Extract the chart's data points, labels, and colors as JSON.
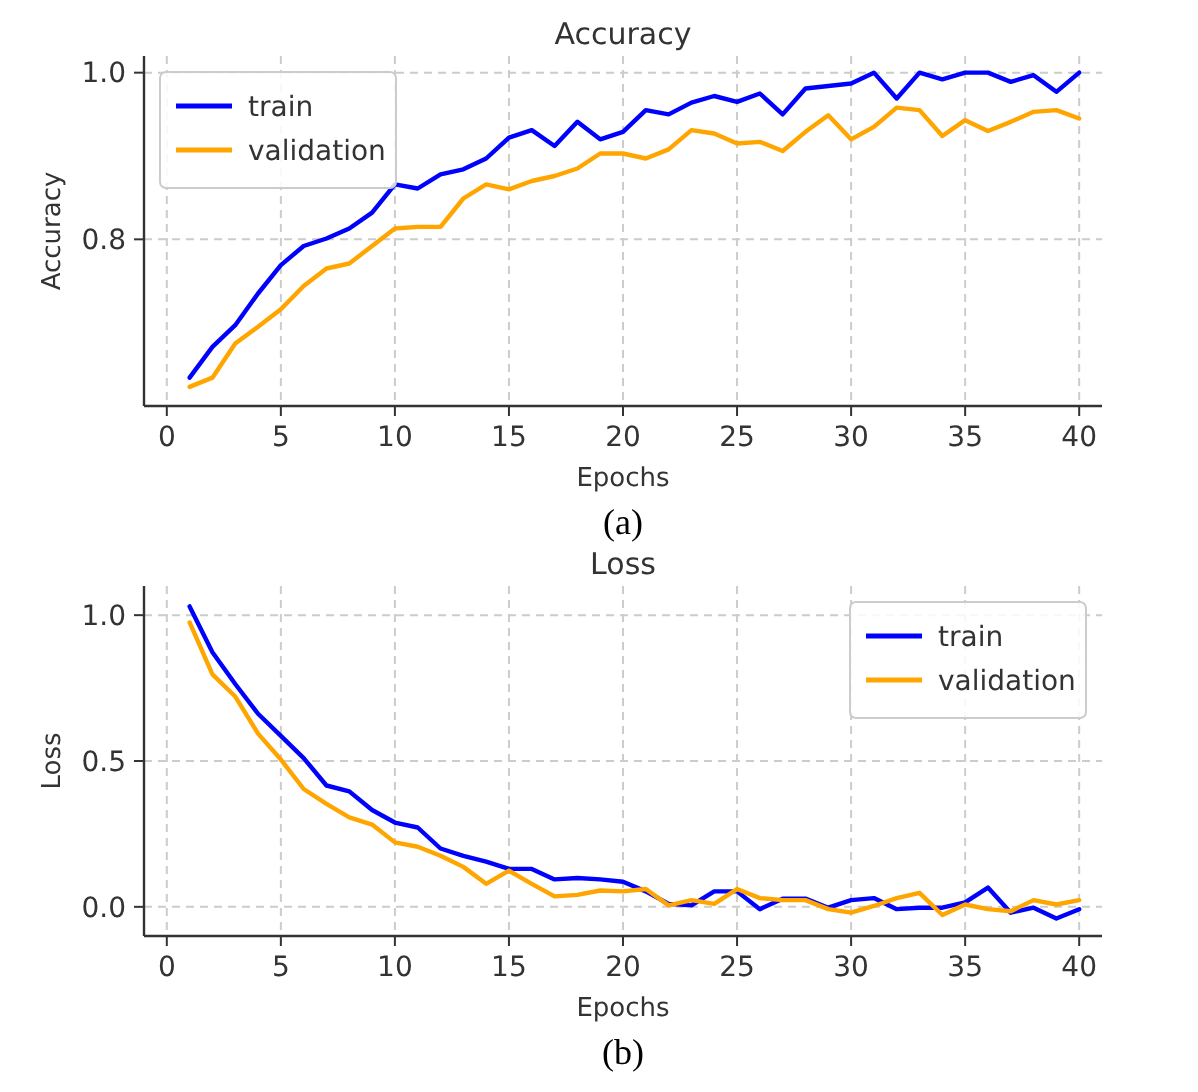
{
  "chart_data": [
    {
      "type": "line",
      "title": "Accuracy",
      "xlabel": "Epochs",
      "ylabel": "Accuracy",
      "annotations": [
        "(a)"
      ],
      "x": [
        1,
        2,
        3,
        4,
        5,
        6,
        7,
        8,
        9,
        10,
        11,
        12,
        13,
        14,
        15,
        16,
        17,
        18,
        19,
        20,
        21,
        22,
        23,
        24,
        25,
        26,
        27,
        28,
        29,
        30,
        31,
        32,
        33,
        34,
        35,
        36,
        37,
        38,
        39,
        40
      ],
      "xlim": [
        -1,
        41
      ],
      "xticks": [
        0,
        5,
        10,
        15,
        20,
        25,
        30,
        35,
        40
      ],
      "ylim": [
        0.6,
        1.02
      ],
      "yticks": [
        {
          "value": 0.8,
          "label": "0.8"
        },
        {
          "value": 1.0,
          "label": "1.0"
        }
      ],
      "grid": true,
      "legend": "top left",
      "line_style": "solid",
      "marker": "none",
      "series": [
        {
          "name": "train",
          "color": "#0000ff",
          "values": [
            0.634,
            0.671,
            0.697,
            0.735,
            0.769,
            0.792,
            0.801,
            0.813,
            0.832,
            0.866,
            0.861,
            0.878,
            0.884,
            0.897,
            0.922,
            0.931,
            0.912,
            0.941,
            0.92,
            0.929,
            0.955,
            0.95,
            0.964,
            0.972,
            0.965,
            0.975,
            0.95,
            0.981,
            0.984,
            0.987,
            1.0,
            0.969,
            1.0,
            0.992,
            1.0,
            1.0,
            0.989,
            0.997,
            0.977,
            1.0
          ]
        },
        {
          "name": "validation",
          "color": "#ffa500",
          "values": [
            0.623,
            0.634,
            0.675,
            0.695,
            0.716,
            0.744,
            0.765,
            0.771,
            0.792,
            0.813,
            0.815,
            0.815,
            0.849,
            0.866,
            0.86,
            0.87,
            0.876,
            0.885,
            0.903,
            0.903,
            0.897,
            0.908,
            0.931,
            0.927,
            0.915,
            0.917,
            0.906,
            0.929,
            0.949,
            0.92,
            0.935,
            0.958,
            0.955,
            0.924,
            0.943,
            0.93,
            0.941,
            0.953,
            0.955,
            0.945
          ]
        }
      ]
    },
    {
      "type": "line",
      "title": "Loss",
      "xlabel": "Epochs",
      "ylabel": "Loss",
      "annotations": [
        "(b)"
      ],
      "x": [
        1,
        2,
        3,
        4,
        5,
        6,
        7,
        8,
        9,
        10,
        11,
        12,
        13,
        14,
        15,
        16,
        17,
        18,
        19,
        20,
        21,
        22,
        23,
        24,
        25,
        26,
        27,
        28,
        29,
        30,
        31,
        32,
        33,
        34,
        35,
        36,
        37,
        38,
        39,
        40
      ],
      "xlim": [
        -1,
        41
      ],
      "xticks": [
        0,
        5,
        10,
        15,
        20,
        25,
        30,
        35,
        40
      ],
      "ylim": [
        -0.1,
        1.1
      ],
      "yticks": [
        {
          "value": 0,
          "label": "0.0"
        },
        {
          "value": 0.5,
          "label": "0.5"
        },
        {
          "value": 1,
          "label": "1.0"
        }
      ],
      "grid": true,
      "legend": "top right",
      "line_style": "solid",
      "marker": "none",
      "series": [
        {
          "name": "train",
          "color": "#0000ff",
          "values": [
            1.03,
            0.873,
            0.764,
            0.662,
            0.586,
            0.51,
            0.416,
            0.396,
            0.332,
            0.289,
            0.272,
            0.2,
            0.175,
            0.155,
            0.13,
            0.13,
            0.094,
            0.099,
            0.094,
            0.086,
            0.053,
            0.01,
            0.005,
            0.053,
            0.053,
            -0.008,
            0.028,
            0.028,
            -0.003,
            0.023,
            0.03,
            -0.008,
            -0.003,
            -0.003,
            0.015,
            0.066,
            -0.02,
            -0.003,
            -0.04,
            -0.008
          ]
        },
        {
          "name": "validation",
          "color": "#ffa500",
          "values": [
            0.975,
            0.797,
            0.721,
            0.594,
            0.505,
            0.404,
            0.353,
            0.307,
            0.282,
            0.221,
            0.206,
            0.175,
            0.137,
            0.079,
            0.124,
            0.079,
            0.036,
            0.041,
            0.056,
            0.053,
            0.061,
            0.005,
            0.023,
            0.01,
            0.061,
            0.03,
            0.023,
            0.023,
            -0.008,
            -0.02,
            0.003,
            0.03,
            0.048,
            -0.028,
            0.008,
            -0.008,
            -0.015,
            0.023,
            0.008,
            0.023
          ]
        }
      ]
    }
  ]
}
